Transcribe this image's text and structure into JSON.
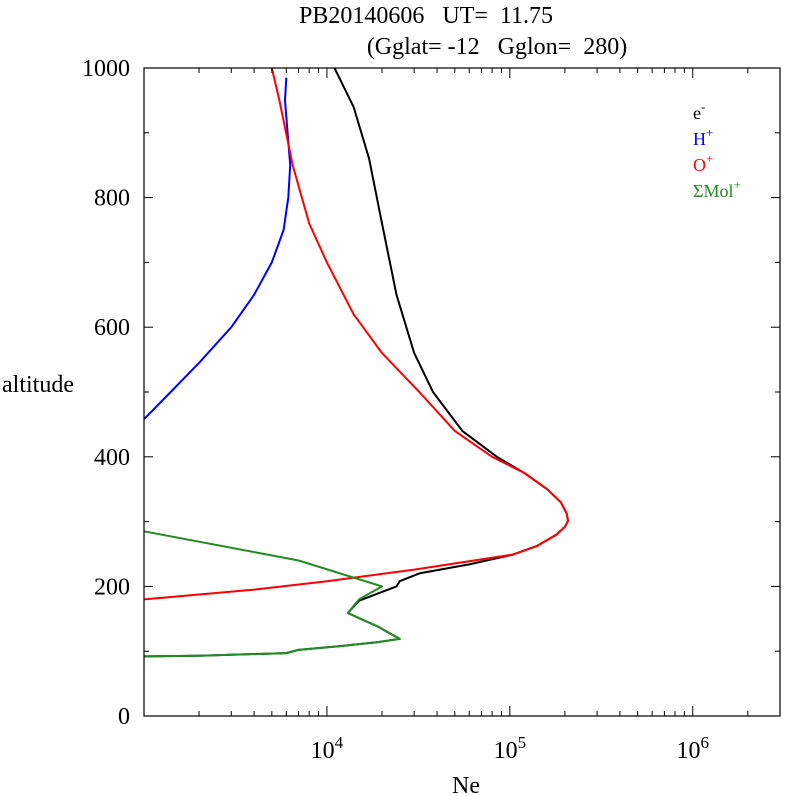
{
  "chart_data": {
    "type": "line",
    "title": "PB20140606   UT=  11.75",
    "subtitle": "(Gglat= -12   Gglon=  280)",
    "xlabel": "Ne",
    "ylabel": "altitude",
    "x_scale": "log",
    "xlim": [
      1000,
      3000000
    ],
    "ylim": [
      0,
      1000
    ],
    "x_ticks": [
      {
        "value": 10000,
        "base": "10",
        "exp": "4"
      },
      {
        "value": 100000,
        "base": "10",
        "exp": "5"
      },
      {
        "value": 1000000,
        "base": "10",
        "exp": "6"
      }
    ],
    "y_ticks": [
      0,
      200,
      400,
      600,
      800,
      1000
    ],
    "grid": false,
    "legend_position": "top-right",
    "series": [
      {
        "name": "e",
        "name_sup": "-",
        "color": "#000000",
        "points": [
          [
            1000,
            92
          ],
          [
            2000,
            93
          ],
          [
            6000,
            97
          ],
          [
            7000,
            102
          ],
          [
            12000,
            108
          ],
          [
            19000,
            114
          ],
          [
            25000,
            119
          ],
          [
            19000,
            138
          ],
          [
            13000,
            159
          ],
          [
            15000,
            178
          ],
          [
            24000,
            200
          ],
          [
            25000,
            208
          ],
          [
            32000,
            220
          ],
          [
            60000,
            234
          ],
          [
            104000,
            249
          ],
          [
            140000,
            262
          ],
          [
            180000,
            280
          ],
          [
            200000,
            292
          ],
          [
            208000,
            301
          ],
          [
            205000,
            312
          ],
          [
            190000,
            330
          ],
          [
            160000,
            350
          ],
          [
            120000,
            375
          ],
          [
            85000,
            400
          ],
          [
            55000,
            440
          ],
          [
            38000,
            500
          ],
          [
            30000,
            560
          ],
          [
            24000,
            650
          ],
          [
            20000,
            760
          ],
          [
            17000,
            860
          ],
          [
            14000,
            940
          ],
          [
            11000,
            1000
          ]
        ]
      },
      {
        "name": "H",
        "name_sup": "+",
        "color": "#0000ff",
        "points": [
          [
            1000,
            458
          ],
          [
            1400,
            500
          ],
          [
            2000,
            545
          ],
          [
            3000,
            600
          ],
          [
            4000,
            650
          ],
          [
            5000,
            700
          ],
          [
            5800,
            750
          ],
          [
            6150,
            800
          ],
          [
            6300,
            850
          ],
          [
            6100,
            900
          ],
          [
            5900,
            950
          ],
          [
            6000,
            985
          ]
        ]
      },
      {
        "name": "O",
        "name_sup": "+",
        "color": "#ff0000",
        "points": [
          [
            1000,
            180
          ],
          [
            4000,
            195
          ],
          [
            10000,
            208
          ],
          [
            30000,
            226
          ],
          [
            104000,
            249
          ],
          [
            140000,
            262
          ],
          [
            180000,
            280
          ],
          [
            200000,
            292
          ],
          [
            208000,
            301
          ],
          [
            205000,
            312
          ],
          [
            190000,
            330
          ],
          [
            160000,
            350
          ],
          [
            120000,
            375
          ],
          [
            80000,
            400
          ],
          [
            50000,
            440
          ],
          [
            32000,
            500
          ],
          [
            20000,
            560
          ],
          [
            14000,
            620
          ],
          [
            10000,
            700
          ],
          [
            8000,
            760
          ],
          [
            6500,
            850
          ],
          [
            5500,
            950
          ],
          [
            5000,
            1000
          ]
        ]
      },
      {
        "name": "ΣMol",
        "name_sup": "+",
        "color": "#228b22",
        "points": [
          [
            1000,
            285
          ],
          [
            7000,
            240
          ],
          [
            20000,
            200
          ],
          [
            15000,
            180
          ],
          [
            13000,
            159
          ],
          [
            19000,
            138
          ],
          [
            25000,
            119
          ],
          [
            19000,
            114
          ],
          [
            12000,
            108
          ],
          [
            7000,
            102
          ],
          [
            6000,
            97
          ],
          [
            2000,
            93
          ],
          [
            1000,
            92
          ]
        ]
      }
    ]
  }
}
